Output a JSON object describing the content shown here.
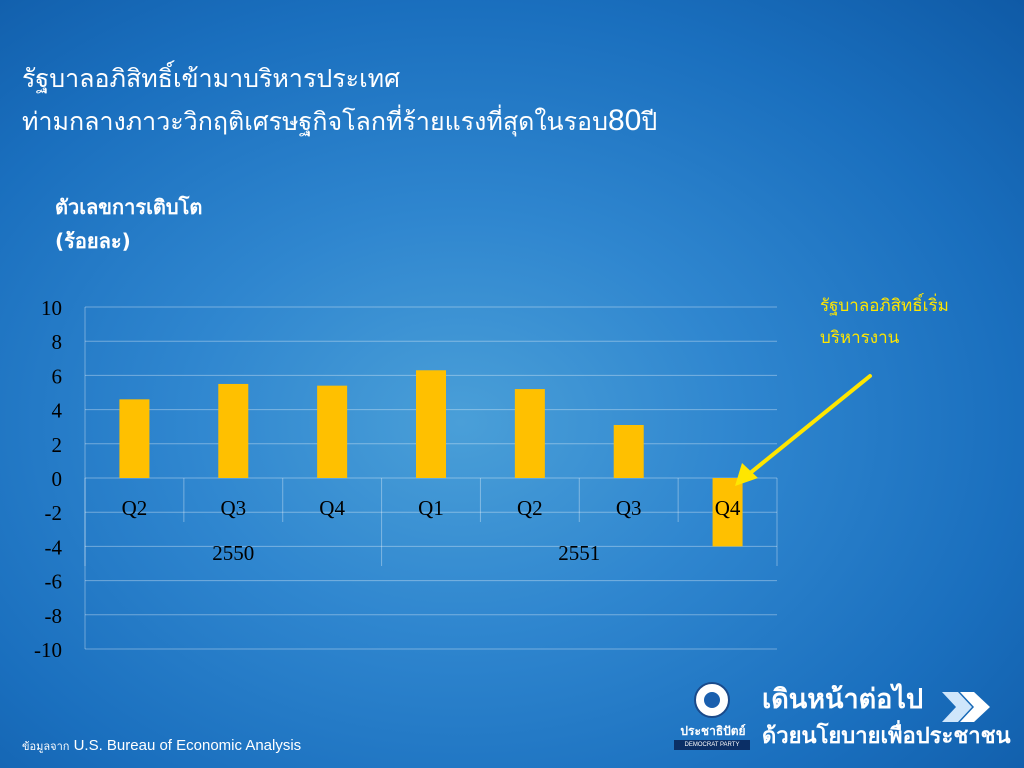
{
  "header": {
    "line1": "รัฐบาลอภิสิทธิ์เข้ามาบริหารประเทศ",
    "line2_text": "ท่ามกลางภาวะวิกฤติเศรษฐกิจโลกที่ร้ายแรงที่สุดในรอบ",
    "line2_number": "80",
    "line2_suffix": "ปี"
  },
  "annotation": {
    "line1": "รัฐบาลอภิสิทธิ์เริ่ม",
    "line2": "บริหารงาน",
    "color": "#ffe600"
  },
  "source": {
    "prefix": "ข้อมูลจาก",
    "text": "U.S. Bureau of Economic Analysis"
  },
  "brand": {
    "party_th": "ประชาธิปัตย์",
    "party_en": "DEMOCRAT PARTY",
    "slogan_line1": "เดินหน้าต่อไป",
    "slogan_line2": "ด้วยนโยบายเพื่อประชาชน"
  },
  "chart_data": {
    "type": "bar",
    "ylabel_line1": "ตัวเลขการเติบโต",
    "ylabel_line2": "(ร้อยละ)",
    "categories": [
      "Q2",
      "Q3",
      "Q4",
      "Q1",
      "Q2",
      "Q3",
      "Q4"
    ],
    "groups": [
      {
        "label": "2550",
        "span": 3
      },
      {
        "label": "2551",
        "span": 4
      }
    ],
    "values": [
      4.6,
      5.5,
      5.4,
      6.3,
      5.2,
      3.1,
      -4.0
    ],
    "ylim": [
      -10,
      10
    ],
    "yticks": [
      10,
      8,
      6,
      4,
      2,
      0,
      -2,
      -4,
      -6,
      -8,
      -10
    ],
    "bar_color": "#ffc000",
    "grid": true
  }
}
